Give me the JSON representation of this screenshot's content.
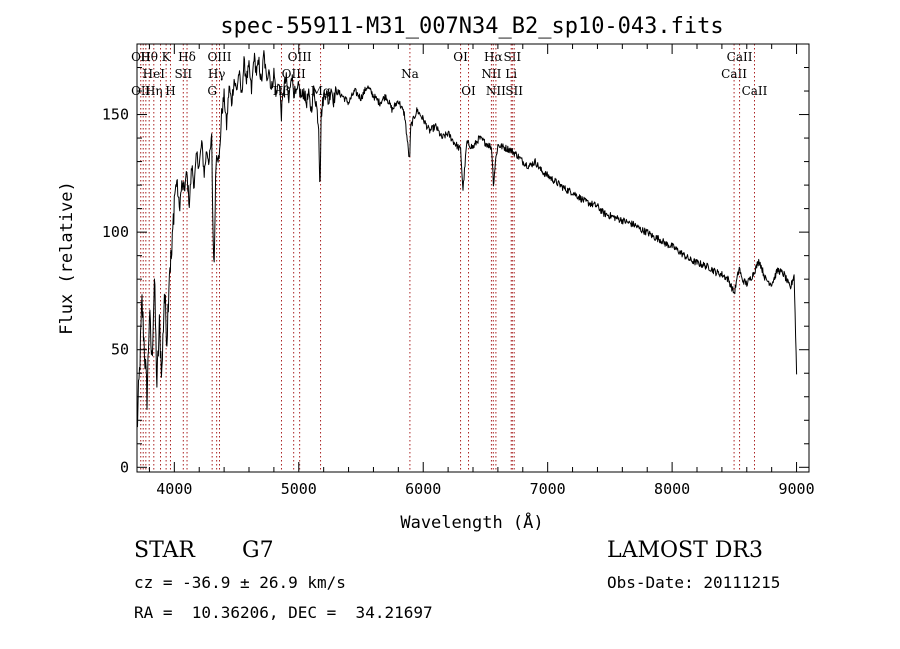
{
  "chart_data": {
    "type": "line",
    "title": "spec-55911-M31_007N34_B2_sp10-043.fits",
    "xlabel": "Wavelength (Å)",
    "ylabel": "Flux (relative)",
    "xlim": [
      3700,
      9100
    ],
    "ylim": [
      -2,
      180
    ],
    "xticks": [
      4000,
      5000,
      6000,
      7000,
      8000,
      9000
    ],
    "yticks": [
      0,
      50,
      100,
      150
    ],
    "grid": false,
    "line_color": "#000000",
    "marker_color": "#aa2222",
    "series": [
      {
        "values_x": [
          3700,
          3720,
          3740,
          3760,
          3780,
          3800,
          3820,
          3840,
          3860,
          3880,
          3900,
          3920,
          3940,
          3960,
          3980,
          4000,
          4020,
          4040,
          4060,
          4080,
          4100,
          4120,
          4140,
          4160,
          4180,
          4200,
          4220,
          4240,
          4260,
          4280,
          4300,
          4310,
          4320,
          4330,
          4340,
          4360,
          4380,
          4400,
          4420,
          4440,
          4460,
          4480,
          4500,
          4520,
          4540,
          4560,
          4580,
          4600,
          4620,
          4640,
          4660,
          4680,
          4700,
          4720,
          4740,
          4760,
          4780,
          4800,
          4820,
          4840,
          4860,
          4880,
          4900,
          4920,
          4940,
          4960,
          4980,
          5000,
          5020,
          5040,
          5060,
          5080,
          5100,
          5120,
          5140,
          5160,
          5170,
          5180,
          5200,
          5220,
          5240,
          5260,
          5280,
          5300,
          5350,
          5400,
          5450,
          5500,
          5550,
          5600,
          5650,
          5700,
          5750,
          5800,
          5850,
          5890,
          5900,
          5950,
          6000,
          6050,
          6100,
          6150,
          6200,
          6250,
          6300,
          6320,
          6350,
          6400,
          6450,
          6500,
          6550,
          6565,
          6580,
          6600,
          6650,
          6700,
          6750,
          6800,
          6850,
          6900,
          6950,
          7000,
          7050,
          7100,
          7150,
          7200,
          7250,
          7300,
          7350,
          7400,
          7450,
          7500,
          7550,
          7600,
          7650,
          7700,
          7750,
          7800,
          7850,
          7900,
          7950,
          8000,
          8050,
          8100,
          8150,
          8200,
          8250,
          8300,
          8350,
          8400,
          8450,
          8500,
          8540,
          8560,
          8600,
          8650,
          8700,
          8750,
          8800,
          8850,
          8900,
          8950,
          8980,
          9000
        ],
        "values_y": [
          15,
          40,
          70,
          50,
          30,
          65,
          45,
          80,
          35,
          60,
          40,
          75,
          55,
          85,
          90,
          115,
          122,
          110,
          120,
          118,
          125,
          112,
          128,
          120,
          133,
          128,
          138,
          125,
          135,
          130,
          140,
          100,
          85,
          120,
          135,
          130,
          150,
          158,
          145,
          162,
          155,
          165,
          160,
          168,
          158,
          172,
          165,
          170,
          160,
          175,
          168,
          172,
          163,
          176,
          165,
          170,
          160,
          168,
          158,
          165,
          150,
          162,
          165,
          155,
          168,
          160,
          158,
          162,
          157,
          160,
          155,
          158,
          152,
          160,
          155,
          145,
          118,
          150,
          158,
          160,
          155,
          162,
          156,
          160,
          158,
          155,
          160,
          157,
          162,
          158,
          155,
          158,
          152,
          156,
          150,
          130,
          145,
          152,
          148,
          143,
          145,
          140,
          142,
          138,
          135,
          118,
          138,
          136,
          140,
          138,
          136,
          120,
          130,
          137,
          136,
          135,
          133,
          130,
          128,
          130,
          126,
          124,
          122,
          120,
          118,
          117,
          115,
          113,
          112,
          111,
          108,
          107,
          106,
          105,
          104,
          103,
          101,
          100,
          98,
          97,
          95,
          94,
          92,
          90,
          88,
          87,
          86,
          85,
          83,
          82,
          80,
          74,
          85,
          80,
          78,
          82,
          88,
          80,
          78,
          84,
          82,
          76,
          82,
          40
        ]
      }
    ],
    "line_markers": [
      {
        "x": 3730,
        "top": "OII",
        "mid": "",
        "low": "OII"
      },
      {
        "x": 3750,
        "top": "",
        "mid": "",
        "low": ""
      },
      {
        "x": 3771,
        "top": "",
        "mid": "",
        "low": ""
      },
      {
        "x": 3798,
        "top": "Hθ",
        "mid": "",
        "low": ""
      },
      {
        "x": 3835,
        "top": "",
        "mid": "HeI",
        "low": "Hη"
      },
      {
        "x": 3889,
        "top": "",
        "mid": "",
        "low": ""
      },
      {
        "x": 3934,
        "top": "K",
        "mid": "",
        "low": ""
      },
      {
        "x": 3969,
        "top": "",
        "mid": "",
        "low": "H"
      },
      {
        "x": 4072,
        "top": "",
        "mid": "SII",
        "low": ""
      },
      {
        "x": 4102,
        "top": "Hδ",
        "mid": "",
        "low": ""
      },
      {
        "x": 4304,
        "top": "",
        "mid": "",
        "low": "G"
      },
      {
        "x": 4340,
        "top": "",
        "mid": "Hγ",
        "low": ""
      },
      {
        "x": 4363,
        "top": "OIII",
        "mid": "",
        "low": ""
      },
      {
        "x": 4861,
        "top": "",
        "mid": "",
        "low": "Hβ"
      },
      {
        "x": 4959,
        "top": "",
        "mid": "OIII",
        "low": ""
      },
      {
        "x": 5007,
        "top": "OIII",
        "mid": "",
        "low": ""
      },
      {
        "x": 5175,
        "top": "",
        "mid": "",
        "low": "Mg"
      },
      {
        "x": 5893,
        "top": "",
        "mid": "Na",
        "low": ""
      },
      {
        "x": 6300,
        "top": "OI",
        "mid": "",
        "low": ""
      },
      {
        "x": 6364,
        "top": "",
        "mid": "",
        "low": "OI"
      },
      {
        "x": 6548,
        "top": "",
        "mid": "NII",
        "low": ""
      },
      {
        "x": 6563,
        "top": "Hα",
        "mid": "",
        "low": ""
      },
      {
        "x": 6584,
        "top": "",
        "mid": "",
        "low": "NII"
      },
      {
        "x": 6707,
        "top": "",
        "mid": "Li",
        "low": ""
      },
      {
        "x": 6716,
        "top": "SII",
        "mid": "",
        "low": ""
      },
      {
        "x": 6731,
        "top": "",
        "mid": "",
        "low": "SII"
      },
      {
        "x": 8498,
        "top": "",
        "mid": "CaII",
        "low": ""
      },
      {
        "x": 8542,
        "top": "CaII",
        "mid": "",
        "low": ""
      },
      {
        "x": 8662,
        "top": "",
        "mid": "",
        "low": "CaII"
      }
    ]
  },
  "info": {
    "class_label": "STAR",
    "subclass": "G7",
    "survey": "LAMOST DR3",
    "cz": "cz = -36.9 ± 26.9 km/s",
    "obs_date": "Obs-Date: 20111215",
    "radec": "RA =  10.36206, DEC =  34.21697"
  }
}
